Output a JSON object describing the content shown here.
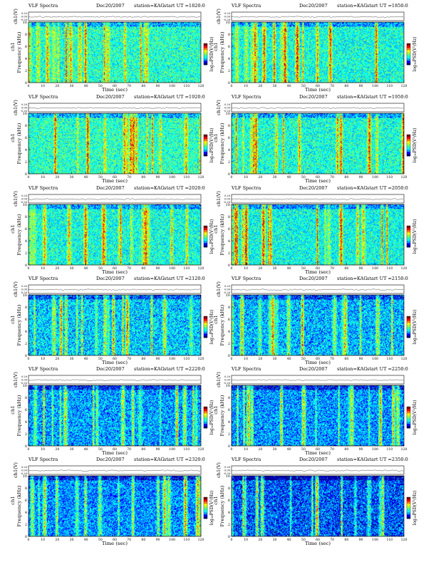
{
  "page": {
    "title_left": "VLF Spectra",
    "date": "Dec20/2007",
    "station": "station=KAG",
    "start_prefix": "start  UT ="
  },
  "labels": {
    "ch_axis": "ch1(V)",
    "freq_axis": "Frequency (kHz)",
    "ch_label": "ch1",
    "time_axis": "Time  (sec)",
    "colorbar": "log₁₀PSD(V²/Hz)"
  },
  "chart_data": [
    {
      "type": "heatmap",
      "title": "VLF Spectra",
      "date": "Dec20/2007",
      "station": "station=KAG",
      "start_ut": "1820:0",
      "xlabel": "Time  (sec)",
      "ylabel": "Frequency (kHz)",
      "xlim": [
        0,
        120
      ],
      "ylim": [
        0,
        10
      ],
      "xticks": [
        0,
        10,
        20,
        30,
        40,
        50,
        60,
        70,
        80,
        90,
        100,
        110,
        120
      ],
      "yticks": [
        0,
        2,
        4,
        6,
        8,
        10
      ],
      "ch_ticks": [
        "0.20",
        "0.00",
        "-0.20"
      ],
      "colorbar_label": "log10PSD(V^2/Hz)"
    },
    {
      "type": "heatmap",
      "title": "VLF Spectra",
      "date": "Dec20/2007",
      "station": "station=KAG",
      "start_ut": "1850:0",
      "xlabel": "Time  (sec)",
      "ylabel": "Frequency (kHz)",
      "xlim": [
        0,
        120
      ],
      "ylim": [
        0,
        10
      ],
      "xticks": [
        0,
        10,
        20,
        30,
        40,
        50,
        60,
        70,
        80,
        90,
        100,
        110,
        120
      ],
      "yticks": [
        0,
        2,
        4,
        6,
        8,
        10
      ],
      "ch_ticks": [
        "0.20",
        "0.00",
        "-0.20"
      ],
      "colorbar_label": "log10PSD(V^2/Hz)"
    },
    {
      "type": "heatmap",
      "title": "VLF Spectra",
      "date": "Dec20/2007",
      "station": "station=KAG",
      "start_ut": "1920:0",
      "xlabel": "Time  (sec)",
      "ylabel": "Frequency (kHz)",
      "xlim": [
        0,
        120
      ],
      "ylim": [
        0,
        10
      ],
      "xticks": [
        0,
        10,
        20,
        30,
        40,
        50,
        60,
        70,
        80,
        90,
        100,
        110,
        120
      ],
      "yticks": [
        0,
        2,
        4,
        6,
        8,
        10
      ],
      "ch_ticks": [
        "0.20",
        "0.00",
        "-0.20"
      ],
      "colorbar_label": "log10PSD(V^2/Hz)"
    },
    {
      "type": "heatmap",
      "title": "VLF Spectra",
      "date": "Dec20/2007",
      "station": "station=KAG",
      "start_ut": "1950:0",
      "xlabel": "Time  (sec)",
      "ylabel": "Frequency (kHz)",
      "xlim": [
        0,
        120
      ],
      "ylim": [
        0,
        10
      ],
      "xticks": [
        0,
        10,
        20,
        30,
        40,
        50,
        60,
        70,
        80,
        90,
        100,
        110,
        120
      ],
      "yticks": [
        0,
        2,
        4,
        6,
        8,
        10
      ],
      "ch_ticks": [
        "0.20",
        "0.00",
        "-0.20"
      ],
      "colorbar_label": "log10PSD(V^2/Hz)"
    },
    {
      "type": "heatmap",
      "title": "VLF Spectra",
      "date": "Dec20/2007",
      "station": "station=KAG",
      "start_ut": "2020:0",
      "xlabel": "Time  (sec)",
      "ylabel": "Frequency (kHz)",
      "xlim": [
        0,
        120
      ],
      "ylim": [
        0,
        10
      ],
      "xticks": [
        0,
        10,
        20,
        30,
        40,
        50,
        60,
        70,
        80,
        90,
        100,
        110,
        120
      ],
      "yticks": [
        0,
        2,
        4,
        6,
        8,
        10
      ],
      "ch_ticks": [
        "0.20",
        "0.00",
        "-0.20"
      ],
      "colorbar_label": "log10PSD(V^2/Hz)"
    },
    {
      "type": "heatmap",
      "title": "VLF Spectra",
      "date": "Dec20/2007",
      "station": "station=KAG",
      "start_ut": "2050:0",
      "xlabel": "Time  (sec)",
      "ylabel": "Frequency (kHz)",
      "xlim": [
        0,
        120
      ],
      "ylim": [
        0,
        10
      ],
      "xticks": [
        0,
        10,
        20,
        30,
        40,
        50,
        60,
        70,
        80,
        90,
        100,
        110,
        120
      ],
      "yticks": [
        0,
        2,
        4,
        6,
        8,
        10
      ],
      "ch_ticks": [
        "0.20",
        "0.00",
        "-0.20"
      ],
      "colorbar_label": "log10PSD(V^2/Hz)"
    },
    {
      "type": "heatmap",
      "title": "VLF Spectra",
      "date": "Dec20/2007",
      "station": "station=KAG",
      "start_ut": "2120:0",
      "xlabel": "Time  (sec)",
      "ylabel": "Frequency (kHz)",
      "xlim": [
        0,
        120
      ],
      "ylim": [
        0,
        10
      ],
      "xticks": [
        0,
        10,
        20,
        30,
        40,
        50,
        60,
        70,
        80,
        90,
        100,
        110,
        120
      ],
      "yticks": [
        0,
        2,
        4,
        6,
        8,
        10
      ],
      "ch_ticks": [
        "0.20",
        "0.00",
        "-0.20"
      ],
      "colorbar_label": "log10PSD(V^2/Hz)"
    },
    {
      "type": "heatmap",
      "title": "VLF Spectra",
      "date": "Dec20/2007",
      "station": "station=KAG",
      "start_ut": "2150:0",
      "xlabel": "Time  (sec)",
      "ylabel": "Frequency (kHz)",
      "xlim": [
        0,
        120
      ],
      "ylim": [
        0,
        10
      ],
      "xticks": [
        0,
        10,
        20,
        30,
        40,
        50,
        60,
        70,
        80,
        90,
        100,
        110,
        120
      ],
      "yticks": [
        0,
        2,
        4,
        6,
        8,
        10
      ],
      "ch_ticks": [
        "0.20",
        "0.00",
        "-0.20"
      ],
      "colorbar_label": "log10PSD(V^2/Hz)"
    },
    {
      "type": "heatmap",
      "title": "VLF Spectra",
      "date": "Dec20/2007",
      "station": "station=KAG",
      "start_ut": "2220:0",
      "xlabel": "Time  (sec)",
      "ylabel": "Frequency (kHz)",
      "xlim": [
        0,
        120
      ],
      "ylim": [
        0,
        10
      ],
      "xticks": [
        0,
        10,
        20,
        30,
        40,
        50,
        60,
        70,
        80,
        90,
        100,
        110,
        120
      ],
      "yticks": [
        0,
        2,
        4,
        6,
        8,
        10
      ],
      "ch_ticks": [
        "0.20",
        "0.00",
        "-0.20"
      ],
      "colorbar_label": "log10PSD(V^2/Hz)"
    },
    {
      "type": "heatmap",
      "title": "VLF Spectra",
      "date": "Dec20/2007",
      "station": "station=KAG",
      "start_ut": "2250:0",
      "xlabel": "Time  (sec)",
      "ylabel": "Frequency (kHz)",
      "xlim": [
        0,
        120
      ],
      "ylim": [
        0,
        10
      ],
      "xticks": [
        0,
        10,
        20,
        30,
        40,
        50,
        60,
        70,
        80,
        90,
        100,
        110,
        120
      ],
      "yticks": [
        0,
        2,
        4,
        6,
        8,
        10
      ],
      "ch_ticks": [
        "0.20",
        "0.00",
        "-0.20"
      ],
      "colorbar_label": "log10PSD(V^2/Hz)"
    },
    {
      "type": "heatmap",
      "title": "VLF Spectra",
      "date": "Dec20/2007",
      "station": "station=KAG",
      "start_ut": "2320:0",
      "xlabel": "Time  (sec)",
      "ylabel": "Frequency (kHz)",
      "xlim": [
        0,
        120
      ],
      "ylim": [
        0,
        10
      ],
      "xticks": [
        0,
        10,
        20,
        30,
        40,
        50,
        60,
        70,
        80,
        90,
        100,
        110,
        120
      ],
      "yticks": [
        0,
        2,
        4,
        6,
        8,
        10
      ],
      "ch_ticks": [
        "0.20",
        "0.00",
        "-0.20"
      ],
      "colorbar_label": "log10PSD(V^2/Hz)"
    },
    {
      "type": "heatmap",
      "title": "VLF Spectra",
      "date": "Dec20/2007",
      "station": "station=KAG",
      "start_ut": "2350:0",
      "xlabel": "Time  (sec)",
      "ylabel": "Frequency (kHz)",
      "xlim": [
        0,
        120
      ],
      "ylim": [
        0,
        10
      ],
      "xticks": [
        0,
        10,
        20,
        30,
        40,
        50,
        60,
        70,
        80,
        90,
        100,
        110,
        120
      ],
      "yticks": [
        0,
        2,
        4,
        6,
        8,
        10
      ],
      "ch_ticks": [
        "0.20",
        "0.00",
        "-0.20"
      ],
      "colorbar_label": "log10PSD(V^2/Hz)"
    }
  ],
  "colors": {
    "colormap": [
      "#00007f",
      "#0000ff",
      "#00a0ff",
      "#00ffff",
      "#40ffa0",
      "#a0ff40",
      "#ffff00",
      "#ff8000",
      "#ff0000",
      "#800000"
    ]
  }
}
